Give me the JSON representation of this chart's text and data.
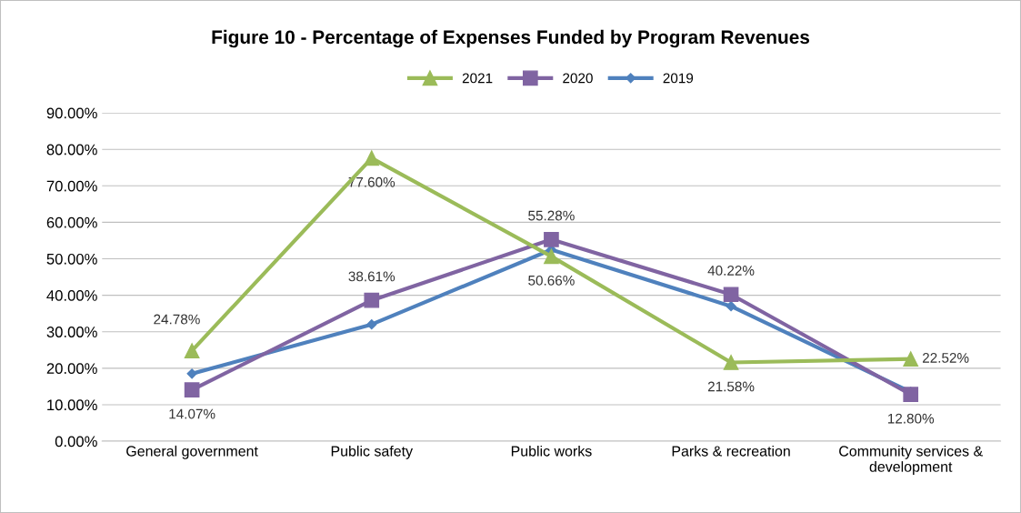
{
  "chart_data": {
    "type": "line",
    "title": "Figure 10 - Percentage of Expenses Funded by Program Revenues",
    "categories": [
      "General government",
      "Public safety",
      "Public works",
      "Parks & recreation",
      "Community services &\ndevelopment"
    ],
    "series": [
      {
        "name": "2021",
        "color": "#9bbb59",
        "marker": "triangle",
        "values": [
          24.78,
          77.6,
          50.66,
          21.58,
          22.52
        ],
        "value_labels": [
          "24.78%",
          "77.60%",
          "50.66%",
          "21.58%",
          "22.52%"
        ]
      },
      {
        "name": "2020",
        "color": "#8064a2",
        "marker": "square",
        "values": [
          14.07,
          38.61,
          55.28,
          40.22,
          12.8
        ],
        "value_labels": [
          "14.07%",
          "38.61%",
          "55.28%",
          "40.22%",
          "12.80%"
        ]
      },
      {
        "name": "2019",
        "color": "#4f81bd",
        "marker": "diamond",
        "values": [
          18.5,
          32.0,
          52.5,
          37.0,
          13.5
        ]
      }
    ],
    "ylim": [
      0,
      90
    ],
    "yticks": [
      {
        "value": 0,
        "label": "0.00%"
      },
      {
        "value": 10,
        "label": "10.00%"
      },
      {
        "value": 20,
        "label": "20.00%"
      },
      {
        "value": 30,
        "label": "30.00%"
      },
      {
        "value": 40,
        "label": "40.00%"
      },
      {
        "value": 50,
        "label": "50.00%"
      },
      {
        "value": 60,
        "label": "60.00%"
      },
      {
        "value": 70,
        "label": "70.00%"
      },
      {
        "value": 80,
        "label": "80.00%"
      },
      {
        "value": 90,
        "label": "90.00%"
      }
    ],
    "grid": "y",
    "legend": "top",
    "line_style": "solid"
  }
}
